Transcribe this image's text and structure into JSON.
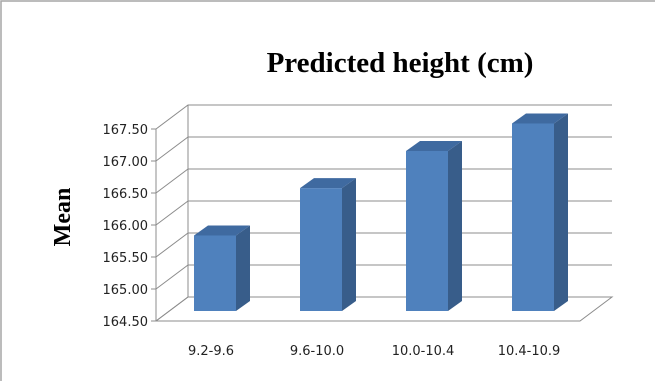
{
  "chart_data": {
    "type": "bar",
    "title": "Predicted height (cm)",
    "xlabel": "",
    "ylabel": "Mean",
    "categories": [
      "9.2-9.6",
      "9.6-10.0",
      "10.0-10.4",
      "10.4-10.9"
    ],
    "values": [
      165.68,
      166.42,
      167.0,
      167.43
    ],
    "ylim": [
      164.5,
      167.5
    ],
    "yticks": [
      "164.50",
      "165.00",
      "165.50",
      "166.00",
      "166.50",
      "167.00",
      "167.50"
    ],
    "grid": true,
    "legend": "none",
    "bar_color": "#4f81bd",
    "bar_side_color": "#385d8a",
    "bar_top_color": "#3f6aa0"
  }
}
